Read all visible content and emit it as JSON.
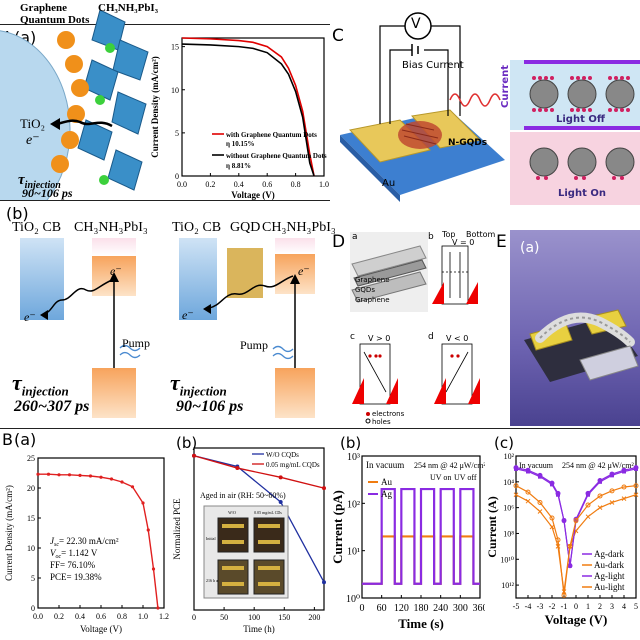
{
  "panels": {
    "A": "A",
    "A_a": "(a)",
    "A_b": "(b)",
    "B": "B",
    "B_a": "(a)",
    "B_b": "(b)",
    "B_bp": "(b)",
    "B_cp": "(c)",
    "C": "C",
    "D": "D",
    "E": "E",
    "E_a": "(a)"
  },
  "A_a_scene": {
    "material1": "Graphene",
    "material2": "Quantum Dots",
    "perovskite": "CH₃NH₃PbI₃",
    "tio2": "TiO₂",
    "electron": "e⁻",
    "tau": "τ",
    "tau_sub": "injection",
    "time": "90~106 ps"
  },
  "A_a_chart": {
    "ylabel": "Current Density (mA/cm²)",
    "xlabel": "Voltage (V)",
    "legend1": "with Graphene Quantum Dots",
    "legend1_eff": "η  10.15%",
    "legend2": "without Graphene Quantum Dots",
    "legend2_eff": "η  8.81%",
    "color1": "#e00000",
    "color2": "#000000"
  },
  "A_b": {
    "left_tio2": "TiO₂ CB",
    "left_per": "CH₃NH₃PbI₃",
    "left_pump": "Pump",
    "left_tau": "τ",
    "left_sub": "injection",
    "left_time": "260~307 ps",
    "right_tio2": "TiO₂ CB",
    "right_gqd": "GQD",
    "right_per": "CH₃NH₃PbI₃",
    "right_pump": "Pump",
    "right_tau": "τ",
    "right_sub": "injection",
    "right_time": "90~106 ps",
    "e1": "e⁻",
    "e2": "e⁻",
    "e3": "e⁻",
    "e4": "e⁻"
  },
  "C": {
    "v": "V",
    "bias": "Bias Current",
    "ngqd": "N-GQDs",
    "au": "Au",
    "glass": "Glass",
    "current": "Current",
    "light_off": "Light Off",
    "light_on": "Light On"
  },
  "D": {
    "a": "a",
    "b": "b",
    "c": "c",
    "d": "d",
    "graphene_top": "Graphene",
    "gqds": "GQDs",
    "graphene_bot": "Graphene",
    "top": "Top",
    "bottom": "Bottom",
    "v0": "V = 0",
    "vpos": "V > 0",
    "vneg": "V < 0",
    "electrons": "electrons",
    "holes": "holes"
  },
  "B_a": {
    "ylabel": "Current Density (mA/cm²)",
    "xlabel": "Voltage (V)",
    "jsc": "J",
    "jsc_sub": "sc",
    "jsc_val": "= 22.30 mA/cm²",
    "voc": "V",
    "voc_sub": "oc",
    "voc_val": "= 1.142 V",
    "ff": "FF= 76.10%",
    "pce": "PCE= 19.38%"
  },
  "B_b": {
    "ylabel": "Normalized PCE",
    "xlabel": "Time (h)",
    "legend1": "W/O CQDs",
    "legend2": "0.05 mg/mL CQDs",
    "aged": "Aged in air (RH: 50~60%)",
    "color1": "#2030a0",
    "color2": "#d01010",
    "thumb_h1": "W/O",
    "thumb_h2": "0.05 mg/mL CDs",
    "thumb_r1": "Initial",
    "thumb_r2": "216 h aged"
  },
  "B_bp": {
    "ylabel": "Current (pA)",
    "xlabel": "Time (s)",
    "cond": "In vacuum",
    "light": "254 nm @ 42 μW/cm²",
    "uv_on": "UV on",
    "uv_off": "UV off",
    "legend1": "Au",
    "legend2": "Ag",
    "color1": "#f07c10",
    "color2": "#8a2be2"
  },
  "B_cp": {
    "ylabel": "Current (A)",
    "xlabel": "Voltage (V)",
    "cond": "In vacuum",
    "light": "254 nm @ 42 μW/cm²",
    "legend": [
      "Ag-dark",
      "Au-dark",
      "Ag-light",
      "Au-light"
    ]
  },
  "chart_data": [
    {
      "type": "line",
      "title": "",
      "xlabel": "Voltage (V)",
      "ylabel": "Current Density (mA/cm²)",
      "x": [
        0.0,
        0.2,
        0.4,
        0.5,
        0.6,
        0.7,
        0.75,
        0.8,
        0.85,
        0.9,
        0.93
      ],
      "series": [
        {
          "name": "with Graphene Quantum Dots",
          "values": [
            16.0,
            15.9,
            15.7,
            15.5,
            15.0,
            13.8,
            12.5,
            10.5,
            7.5,
            2.5,
            0
          ]
        },
        {
          "name": "without Graphene Quantum Dots",
          "values": [
            15.3,
            15.2,
            15.0,
            14.8,
            14.3,
            13.0,
            11.8,
            9.8,
            6.8,
            1.5,
            0
          ]
        }
      ],
      "xlim": [
        0.0,
        1.0
      ],
      "ylim": [
        0,
        16
      ],
      "xticks": [
        "0.0",
        "0.2",
        "0.4",
        "0.6",
        "0.8",
        "1.0"
      ],
      "yticks": [
        "0",
        "5",
        "10",
        "15"
      ]
    },
    {
      "type": "line",
      "title": "",
      "xlabel": "Voltage (V)",
      "ylabel": "Current Density (mA/cm²)",
      "x": [
        0.0,
        0.1,
        0.2,
        0.3,
        0.4,
        0.5,
        0.6,
        0.7,
        0.8,
        0.9,
        1.0,
        1.05,
        1.1,
        1.142
      ],
      "series": [
        {
          "name": "",
          "values": [
            22.3,
            22.3,
            22.2,
            22.2,
            22.1,
            22.0,
            21.8,
            21.5,
            21.0,
            20.2,
            17.5,
            13.0,
            6.5,
            0
          ]
        }
      ],
      "xlim": [
        0.0,
        1.2
      ],
      "ylim": [
        0,
        25
      ],
      "xticks": [
        "0.0",
        "0.2",
        "0.4",
        "0.6",
        "0.8",
        "1.0",
        "1.2"
      ],
      "yticks": [
        "0",
        "5",
        "10",
        "15",
        "20",
        "25"
      ]
    },
    {
      "type": "line",
      "title": "",
      "xlabel": "Time (h)",
      "ylabel": "Normalized PCE",
      "series": [
        {
          "name": "W/O CQDs",
          "x": [
            0,
            72,
            144,
            216
          ],
          "values": [
            1.0,
            0.93,
            0.7,
            0.18
          ]
        },
        {
          "name": "0.05 mg/mL CQDs",
          "x": [
            0,
            72,
            144,
            216
          ],
          "values": [
            1.0,
            0.92,
            0.86,
            0.79
          ]
        }
      ],
      "xlim": [
        0,
        216
      ],
      "ylim": [
        0,
        1.05
      ],
      "xticks": [
        "0",
        "50",
        "100",
        "150",
        "200"
      ]
    },
    {
      "type": "line",
      "title": "",
      "xlabel": "Time (s)",
      "ylabel": "Current (pA)",
      "yscale": "log",
      "series": [
        {
          "name": "Au",
          "low": 2,
          "high": 20
        },
        {
          "name": "Ag",
          "low": 2,
          "high": 200
        }
      ],
      "on_intervals_s": [
        [
          60,
          100
        ],
        [
          120,
          160
        ],
        [
          180,
          220
        ],
        [
          240,
          280
        ],
        [
          300,
          340
        ]
      ],
      "xlim": [
        0,
        360
      ],
      "ylim_exp": [
        0,
        3
      ],
      "xticks": [
        "0",
        "60",
        "120",
        "180",
        "240",
        "300",
        "360"
      ],
      "yticks": [
        "10⁰",
        "10¹",
        "10²",
        "10³"
      ]
    },
    {
      "type": "line",
      "title": "",
      "xlabel": "Voltage (V)",
      "ylabel": "Current (A)",
      "yscale": "log",
      "x": [
        -5,
        -4,
        -3,
        -2,
        -1.5,
        -1,
        -0.5,
        0,
        1,
        2,
        3,
        4,
        5
      ],
      "series": [
        {
          "name": "Ag-dark",
          "values_exp": [
            -3,
            -3.2,
            -3.6,
            -4.2,
            -5,
            -7,
            -10.5,
            -7,
            -5,
            -4,
            -3.5,
            -3.2,
            -3
          ]
        },
        {
          "name": "Au-dark",
          "values_exp": [
            -5,
            -5.5,
            -6.3,
            -7.5,
            -9,
            -12.5,
            -9,
            -7.8,
            -6.7,
            -6,
            -5.6,
            -5.3,
            -5
          ]
        },
        {
          "name": "Ag-light",
          "values_exp": [
            -2.9,
            -3.1,
            -3.5,
            -4.1,
            -4.9,
            -7,
            -10.5,
            -6.9,
            -4.9,
            -3.9,
            -3.4,
            -3.1,
            -2.9
          ]
        },
        {
          "name": "Au-light",
          "values_exp": [
            -4.3,
            -4.8,
            -5.6,
            -6.8,
            -8.5,
            -12.8,
            -9,
            -7,
            -5.8,
            -5.1,
            -4.7,
            -4.4,
            -4.3
          ]
        }
      ],
      "xlim": [
        -5,
        5
      ],
      "ylim_exp": [
        -13,
        -2
      ],
      "xticks": [
        "-5",
        "-4",
        "-3",
        "-2",
        "-1",
        "0",
        "1",
        "2",
        "3",
        "4",
        "5"
      ],
      "yticks": [
        "10²",
        "10⁴",
        "10⁶",
        "10⁸",
        "10¹⁰",
        "10¹²"
      ]
    }
  ]
}
